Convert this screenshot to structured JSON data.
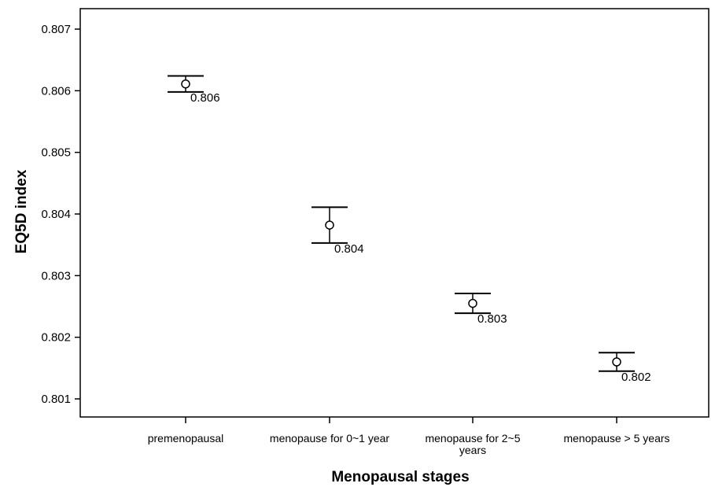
{
  "chart_data": {
    "type": "scatter",
    "subtype": "error-bar",
    "xlabel": "Menopausal stages",
    "ylabel": "EQ5D index",
    "categories": [
      [
        "premenopausal"
      ],
      [
        "menopause for 0~1 year"
      ],
      [
        "menopause for 2~5",
        "years"
      ],
      [
        "menopause > 5 years"
      ]
    ],
    "points": [
      {
        "mean": 0.80611,
        "lower": 0.80598,
        "upper": 0.80624,
        "label": "0.806"
      },
      {
        "mean": 0.80382,
        "lower": 0.80353,
        "upper": 0.80411,
        "label": "0.804"
      },
      {
        "mean": 0.80255,
        "lower": 0.80239,
        "upper": 0.80271,
        "label": "0.803"
      },
      {
        "mean": 0.8016,
        "lower": 0.80145,
        "upper": 0.80175,
        "label": "0.802"
      }
    ],
    "yticks": [
      "0.801",
      "0.802",
      "0.803",
      "0.804",
      "0.805",
      "0.806",
      "0.807"
    ],
    "ylim": [
      0.8004,
      0.8073
    ],
    "grid": false,
    "legend": "none",
    "colors": {
      "mark": "#000000",
      "background": "#ffffff"
    }
  }
}
